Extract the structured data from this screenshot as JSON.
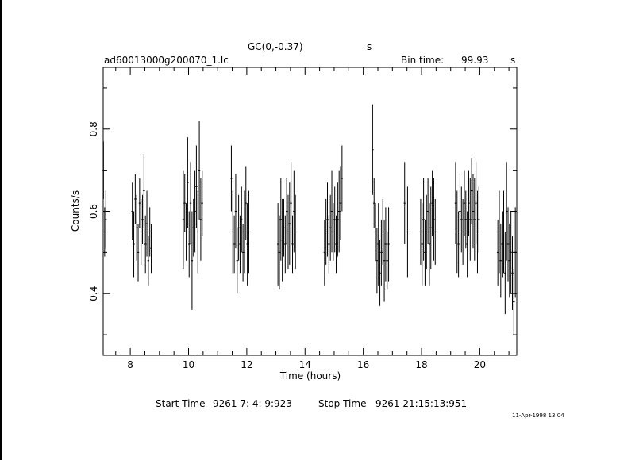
{
  "header": {
    "title": "GC(0,-0.37)",
    "title_unit": "s",
    "filename": "ad60013000g200070_1.lc",
    "bin_time_label": "Bin time:",
    "bin_time_value": "99.93",
    "bin_time_unit": "s"
  },
  "footer": {
    "start_label": "Start Time",
    "start_value": "9261  7: 4: 9:923",
    "stop_label": "Stop Time",
    "stop_value": "9261 21:15:13:951",
    "timestamp": "11-Apr-1998 13:04"
  },
  "colors": {
    "axes": "#000000",
    "data": "#000000",
    "background": "#ffffff"
  },
  "chart_data": {
    "type": "scatter",
    "xlabel": "Time (hours)",
    "ylabel": "Counts/s",
    "xlim": [
      7.07,
      21.27
    ],
    "ylim": [
      0.25,
      0.95
    ],
    "xticks": [
      8,
      10,
      12,
      14,
      16,
      18,
      20
    ],
    "yticks": [
      0.4,
      0.6,
      0.8
    ],
    "grid": false,
    "series": [
      {
        "style": "errorbar",
        "points": [
          [
            7.08,
            0.7,
            0.07
          ],
          [
            7.12,
            0.55,
            0.06
          ],
          [
            7.16,
            0.58,
            0.07
          ],
          [
            8.07,
            0.6,
            0.07
          ],
          [
            8.12,
            0.52,
            0.08
          ],
          [
            8.17,
            0.63,
            0.06
          ],
          [
            8.22,
            0.56,
            0.08
          ],
          [
            8.27,
            0.5,
            0.07
          ],
          [
            8.32,
            0.62,
            0.06
          ],
          [
            8.37,
            0.55,
            0.08
          ],
          [
            8.42,
            0.58,
            0.06
          ],
          [
            8.47,
            0.65,
            0.09
          ],
          [
            8.52,
            0.52,
            0.07
          ],
          [
            8.57,
            0.57,
            0.08
          ],
          [
            8.62,
            0.48,
            0.06
          ],
          [
            8.67,
            0.55,
            0.06
          ],
          [
            8.72,
            0.51,
            0.06
          ],
          [
            9.82,
            0.58,
            0.12
          ],
          [
            9.87,
            0.62,
            0.07
          ],
          [
            9.92,
            0.55,
            0.07
          ],
          [
            9.97,
            0.67,
            0.11
          ],
          [
            10.02,
            0.52,
            0.08
          ],
          [
            10.07,
            0.62,
            0.1
          ],
          [
            10.12,
            0.48,
            0.12
          ],
          [
            10.17,
            0.56,
            0.07
          ],
          [
            10.22,
            0.6,
            0.1
          ],
          [
            10.27,
            0.66,
            0.1
          ],
          [
            10.32,
            0.55,
            0.1
          ],
          [
            10.37,
            0.7,
            0.12
          ],
          [
            10.42,
            0.58,
            0.1
          ],
          [
            10.47,
            0.62,
            0.08
          ],
          [
            11.47,
            0.68,
            0.08
          ],
          [
            11.52,
            0.55,
            0.1
          ],
          [
            11.57,
            0.52,
            0.07
          ],
          [
            11.62,
            0.6,
            0.09
          ],
          [
            11.67,
            0.48,
            0.08
          ],
          [
            11.72,
            0.56,
            0.08
          ],
          [
            11.77,
            0.52,
            0.07
          ],
          [
            11.82,
            0.58,
            0.08
          ],
          [
            11.87,
            0.5,
            0.07
          ],
          [
            11.92,
            0.55,
            0.1
          ],
          [
            11.97,
            0.62,
            0.09
          ],
          [
            12.02,
            0.52,
            0.1
          ],
          [
            12.07,
            0.55,
            0.1
          ],
          [
            13.07,
            0.52,
            0.1
          ],
          [
            13.12,
            0.5,
            0.09
          ],
          [
            13.17,
            0.58,
            0.1
          ],
          [
            13.22,
            0.53,
            0.1
          ],
          [
            13.27,
            0.56,
            0.07
          ],
          [
            13.32,
            0.52,
            0.07
          ],
          [
            13.37,
            0.6,
            0.08
          ],
          [
            13.42,
            0.55,
            0.09
          ],
          [
            13.47,
            0.57,
            0.1
          ],
          [
            13.52,
            0.62,
            0.1
          ],
          [
            13.57,
            0.52,
            0.07
          ],
          [
            13.62,
            0.6,
            0.1
          ],
          [
            13.67,
            0.55,
            0.09
          ],
          [
            14.67,
            0.5,
            0.08
          ],
          [
            14.72,
            0.55,
            0.08
          ],
          [
            14.77,
            0.58,
            0.09
          ],
          [
            14.82,
            0.52,
            0.07
          ],
          [
            14.87,
            0.56,
            0.08
          ],
          [
            14.92,
            0.6,
            0.1
          ],
          [
            14.97,
            0.55,
            0.07
          ],
          [
            15.02,
            0.58,
            0.08
          ],
          [
            15.07,
            0.52,
            0.07
          ],
          [
            15.12,
            0.58,
            0.09
          ],
          [
            15.17,
            0.6,
            0.1
          ],
          [
            15.22,
            0.62,
            0.09
          ],
          [
            15.27,
            0.68,
            0.08
          ],
          [
            16.32,
            0.75,
            0.11
          ],
          [
            16.37,
            0.62,
            0.06
          ],
          [
            16.42,
            0.55,
            0.07
          ],
          [
            16.47,
            0.48,
            0.08
          ],
          [
            16.52,
            0.52,
            0.1
          ],
          [
            16.57,
            0.45,
            0.08
          ],
          [
            16.62,
            0.5,
            0.08
          ],
          [
            16.67,
            0.55,
            0.08
          ],
          [
            16.72,
            0.48,
            0.1
          ],
          [
            16.77,
            0.52,
            0.09
          ],
          [
            16.82,
            0.48,
            0.07
          ],
          [
            16.87,
            0.52,
            0.09
          ],
          [
            17.42,
            0.62,
            0.1
          ],
          [
            17.52,
            0.55,
            0.11
          ],
          [
            17.97,
            0.55,
            0.08
          ],
          [
            18.02,
            0.52,
            0.1
          ],
          [
            18.07,
            0.58,
            0.1
          ],
          [
            18.12,
            0.5,
            0.08
          ],
          [
            18.17,
            0.55,
            0.09
          ],
          [
            18.22,
            0.6,
            0.08
          ],
          [
            18.27,
            0.52,
            0.1
          ],
          [
            18.32,
            0.56,
            0.1
          ],
          [
            18.37,
            0.62,
            0.08
          ],
          [
            18.42,
            0.58,
            0.1
          ],
          [
            18.47,
            0.55,
            0.08
          ],
          [
            19.17,
            0.62,
            0.1
          ],
          [
            19.22,
            0.55,
            0.1
          ],
          [
            19.27,
            0.52,
            0.08
          ],
          [
            19.32,
            0.6,
            0.09
          ],
          [
            19.37,
            0.58,
            0.08
          ],
          [
            19.42,
            0.55,
            0.08
          ],
          [
            19.47,
            0.62,
            0.08
          ],
          [
            19.52,
            0.58,
            0.07
          ],
          [
            19.57,
            0.52,
            0.08
          ],
          [
            19.62,
            0.62,
            0.08
          ],
          [
            19.67,
            0.58,
            0.1
          ],
          [
            19.72,
            0.65,
            0.08
          ],
          [
            19.77,
            0.6,
            0.09
          ],
          [
            19.82,
            0.58,
            0.1
          ],
          [
            19.87,
            0.62,
            0.1
          ],
          [
            19.92,
            0.55,
            0.1
          ],
          [
            19.97,
            0.58,
            0.08
          ],
          [
            20.62,
            0.5,
            0.08
          ],
          [
            20.67,
            0.55,
            0.1
          ],
          [
            20.72,
            0.48,
            0.09
          ],
          [
            20.77,
            0.52,
            0.08
          ],
          [
            20.82,
            0.55,
            0.1
          ],
          [
            20.87,
            0.45,
            0.1
          ],
          [
            20.92,
            0.6,
            0.12
          ],
          [
            20.97,
            0.52,
            0.09
          ],
          [
            21.02,
            0.48,
            0.09
          ],
          [
            21.07,
            0.5,
            0.1
          ],
          [
            21.12,
            0.45,
            0.09
          ],
          [
            21.17,
            0.38,
            0.08
          ],
          [
            21.22,
            0.5,
            0.11
          ]
        ]
      }
    ]
  }
}
